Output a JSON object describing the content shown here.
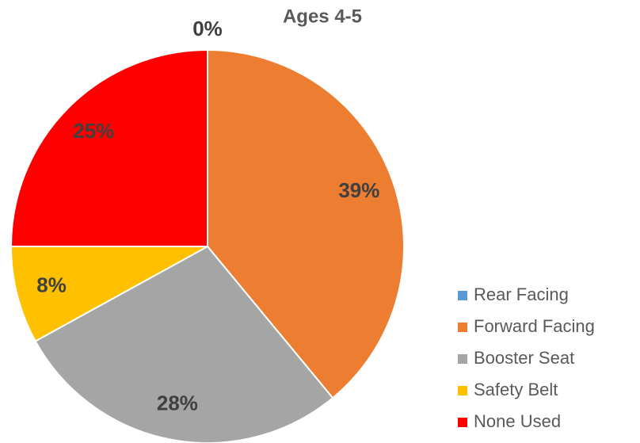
{
  "chart_data": {
    "type": "pie",
    "title": "Ages 4-5",
    "categories": [
      "Rear Facing",
      "Forward Facing",
      "Booster Seat",
      "Safety Belt",
      "None Used"
    ],
    "values": [
      0,
      39,
      28,
      8,
      25
    ],
    "value_labels": [
      "0%",
      "39%",
      "28%",
      "8%",
      "25%"
    ],
    "colors": [
      "#5b9bd5",
      "#ed7d31",
      "#a5a5a5",
      "#ffc000",
      "#ff0000"
    ],
    "legend": "right"
  }
}
